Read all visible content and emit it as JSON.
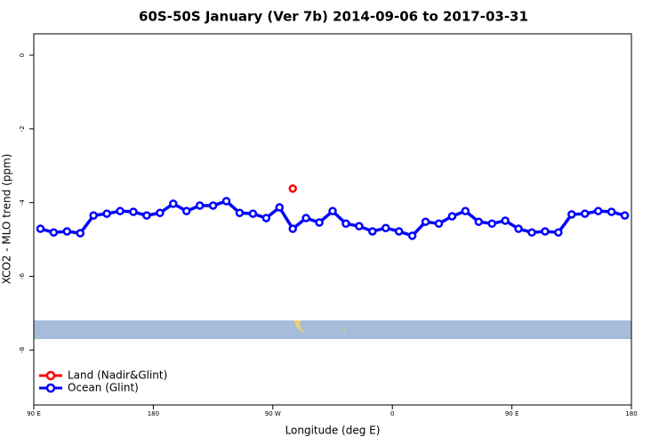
{
  "chart_data": {
    "type": "line",
    "title": "60S-50S January (Ver 7b)   2014-09-06 to 2017-03-31",
    "xlabel": "Longitude (deg E)",
    "ylabel": "XCO2 - MLO trend (ppm)",
    "xlim": [
      90,
      540
    ],
    "xticks": [
      {
        "value": 90,
        "label": "90 E"
      },
      180,
      {
        "value": 270,
        "label": "90 W"
      },
      {
        "value": 360,
        "label": "0"
      },
      {
        "value": 450,
        "label": "90 E"
      },
      {
        "value": 540,
        "label": "180"
      }
    ],
    "ylim": [
      -9.49,
      0.58
    ],
    "yticks": [
      0,
      -2,
      -4,
      -6,
      -8
    ],
    "legend": "bottom-left",
    "series": [
      {
        "name": "Land (Nadir&Glint)",
        "color": "#ff0000",
        "x": [
          285
        ],
        "values": [
          -3.62
        ]
      },
      {
        "name": "Ocean (Glint)",
        "color": "#0000ff",
        "x": [
          95,
          105,
          115,
          125,
          135,
          145,
          155,
          165,
          175,
          185,
          195,
          205,
          215,
          225,
          235,
          245,
          255,
          265,
          275,
          285,
          295,
          305,
          315,
          325,
          335,
          345,
          355,
          365,
          375,
          385,
          395,
          405,
          415,
          425,
          435,
          445,
          455,
          465,
          475,
          485,
          495,
          505,
          515,
          525,
          535
        ],
        "values": [
          -4.71,
          -4.81,
          -4.78,
          -4.83,
          -4.35,
          -4.3,
          -4.23,
          -4.25,
          -4.35,
          -4.28,
          -4.03,
          -4.23,
          -4.08,
          -4.08,
          -3.96,
          -4.28,
          -4.3,
          -4.42,
          -4.13,
          -4.71,
          -4.42,
          -4.54,
          -4.23,
          -4.57,
          -4.64,
          -4.78,
          -4.69,
          -4.78,
          -4.9,
          -4.52,
          -4.57,
          -4.37,
          -4.23,
          -4.52,
          -4.57,
          -4.49,
          -4.71,
          -4.81,
          -4.78,
          -4.81,
          -4.32,
          -4.3,
          -4.23,
          -4.25,
          -4.35
        ]
      }
    ]
  }
}
